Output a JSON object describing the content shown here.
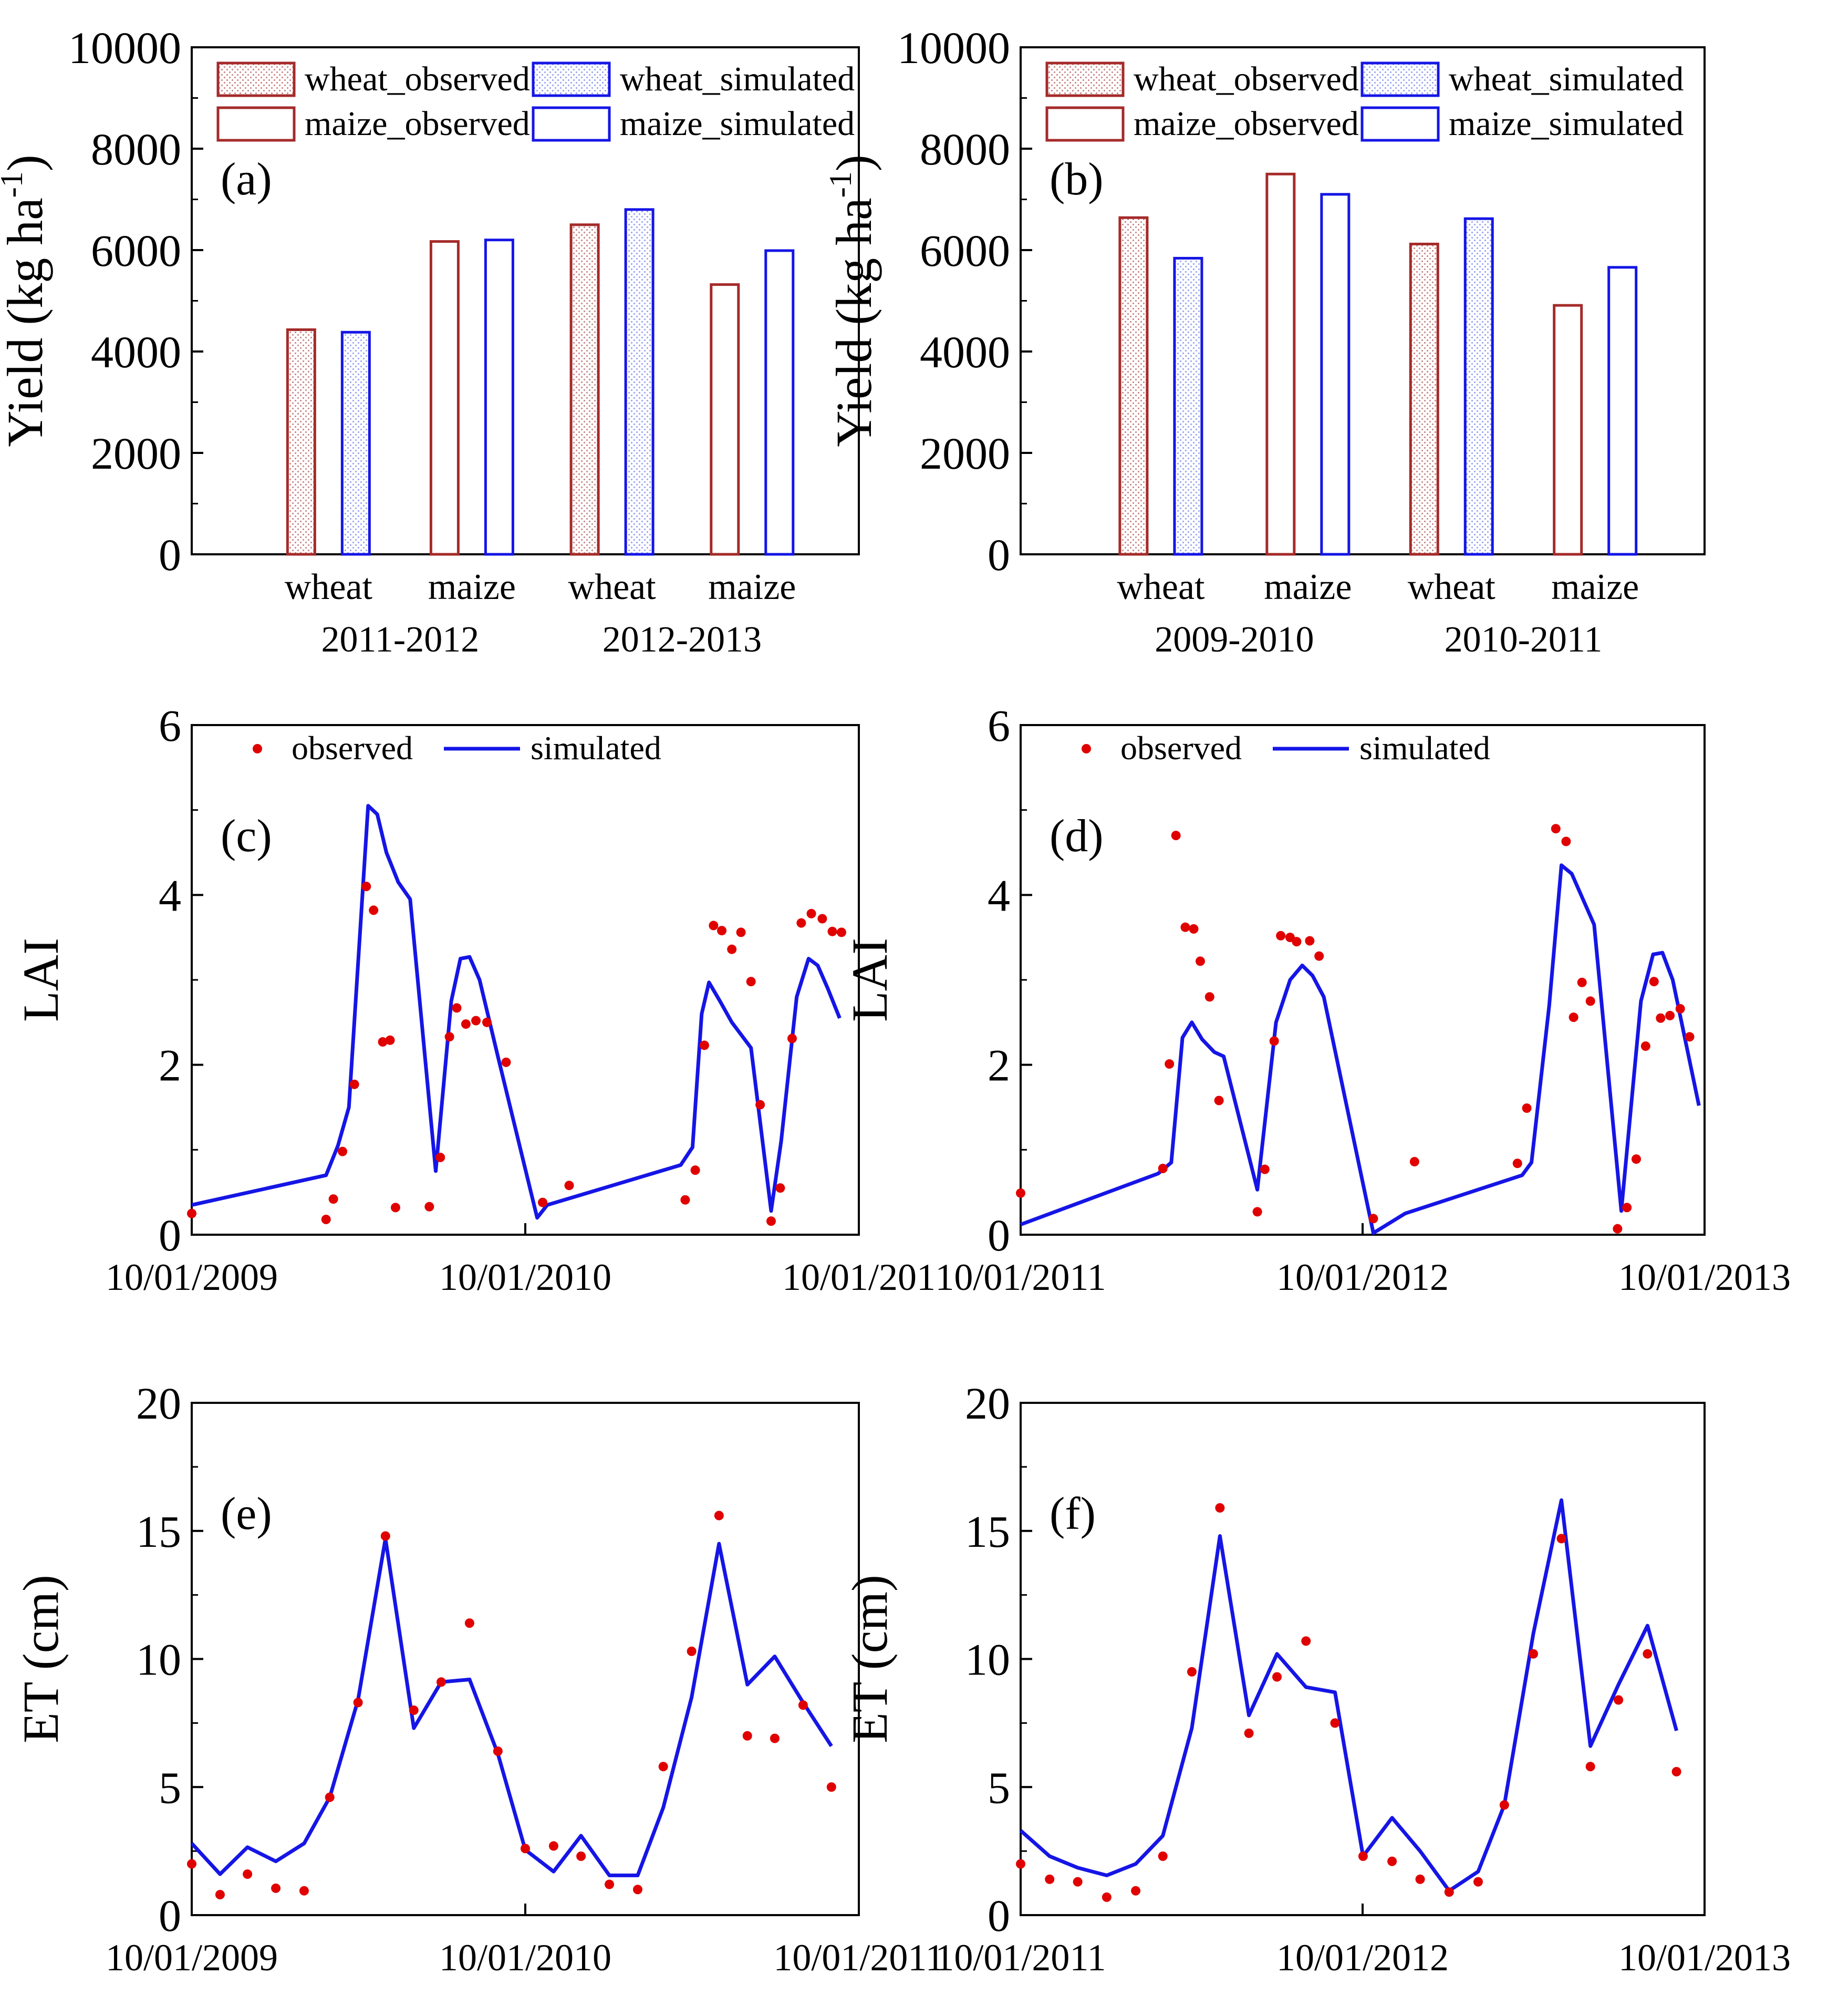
{
  "colors": {
    "observed": "#a52a2a",
    "simulated": "#1515e6",
    "point": "#e00000",
    "hatch_obs": "#c98a8a",
    "hatch_sim": "#9aa7ee"
  },
  "chart_data": [
    {
      "id": "a",
      "type": "bar",
      "panel_label": "(a)",
      "ylabel": "Yield (kg ha",
      "ylabel_sup": "-1",
      "ylabel_end": ")",
      "ylim": [
        0,
        10000
      ],
      "yticks": [
        "0",
        "2000",
        "4000",
        "6000",
        "8000",
        "10000"
      ],
      "categories": [
        "wheat",
        "maize",
        "wheat",
        "maize"
      ],
      "groups": [
        "2011-2012",
        "2012-2013"
      ],
      "series": [
        {
          "name": "wheat_observed",
          "values": [
            4430,
            null,
            6500,
            null
          ]
        },
        {
          "name": "maize_observed",
          "values": [
            null,
            6170,
            null,
            5320
          ]
        },
        {
          "name": "wheat_simulated",
          "values": [
            4380,
            null,
            6800,
            null
          ]
        },
        {
          "name": "maize_simulated",
          "values": [
            null,
            6200,
            null,
            5990
          ]
        }
      ],
      "legend": [
        "wheat_observed",
        "wheat_simulated",
        "maize_observed",
        "maize_simulated"
      ],
      "legend_position": "top"
    },
    {
      "id": "b",
      "type": "bar",
      "panel_label": "(b)",
      "ylabel": "Yield (kg ha",
      "ylabel_sup": "-1",
      "ylabel_end": ")",
      "ylim": [
        0,
        10000
      ],
      "yticks": [
        "0",
        "2000",
        "4000",
        "6000",
        "8000",
        "10000"
      ],
      "categories": [
        "wheat",
        "maize",
        "wheat",
        "maize"
      ],
      "groups": [
        "2009-2010",
        "2010-2011"
      ],
      "series": [
        {
          "name": "wheat_observed",
          "values": [
            6640,
            null,
            6120,
            null
          ]
        },
        {
          "name": "maize_observed",
          "values": [
            null,
            7500,
            null,
            4910
          ]
        },
        {
          "name": "wheat_simulated",
          "values": [
            5840,
            null,
            6620,
            null
          ]
        },
        {
          "name": "maize_simulated",
          "values": [
            null,
            7100,
            null,
            5660
          ]
        }
      ],
      "legend": [
        "wheat_observed",
        "wheat_simulated",
        "maize_observed",
        "maize_simulated"
      ],
      "legend_position": "top"
    },
    {
      "id": "c",
      "type": "line",
      "panel_label": "(c)",
      "ylabel": "LAI",
      "ylim": [
        0,
        6
      ],
      "yticks": [
        "0",
        "2",
        "4",
        "6"
      ],
      "xlim": [
        "2009-10-01",
        "2011-10-01"
      ],
      "xticks": [
        "10/01/2009",
        "10/01/2010",
        "10/01/201"
      ],
      "legend": {
        "observed": "observed",
        "simulated": "simulated"
      },
      "legend_position": "top",
      "simulated": [
        [
          "2009-10-01",
          0.35
        ],
        [
          "2010-02-25",
          0.7
        ],
        [
          "2010-03-10",
          1.05
        ],
        [
          "2010-03-22",
          1.5
        ],
        [
          "2010-04-12",
          5.05
        ],
        [
          "2010-04-22",
          4.95
        ],
        [
          "2010-05-02",
          4.5
        ],
        [
          "2010-05-15",
          4.15
        ],
        [
          "2010-05-28",
          3.95
        ],
        [
          "2010-06-25",
          0.75
        ],
        [
          "2010-07-12",
          2.75
        ],
        [
          "2010-07-22",
          3.25
        ],
        [
          "2010-08-01",
          3.27
        ],
        [
          "2010-08-12",
          3.0
        ],
        [
          "2010-09-01",
          2.1
        ],
        [
          "2010-10-14",
          0.2
        ],
        [
          "2010-10-25",
          0.35
        ],
        [
          "2011-03-20",
          0.82
        ],
        [
          "2011-04-02",
          1.03
        ],
        [
          "2011-04-12",
          2.6
        ],
        [
          "2011-04-20",
          2.97
        ],
        [
          "2011-05-02",
          2.75
        ],
        [
          "2011-05-15",
          2.5
        ],
        [
          "2011-06-05",
          2.2
        ],
        [
          "2011-06-27",
          0.28
        ],
        [
          "2011-07-08",
          1.1
        ],
        [
          "2011-07-25",
          2.8
        ],
        [
          "2011-08-07",
          3.25
        ],
        [
          "2011-08-17",
          3.17
        ],
        [
          "2011-08-28",
          2.9
        ],
        [
          "2011-09-10",
          2.55
        ]
      ],
      "observed": [
        [
          "2009-10-01",
          0.25
        ],
        [
          "2010-02-25",
          0.18
        ],
        [
          "2010-03-05",
          0.42
        ],
        [
          "2010-03-15",
          0.98
        ],
        [
          "2010-03-28",
          1.77
        ],
        [
          "2010-04-10",
          4.1
        ],
        [
          "2010-04-18",
          3.82
        ],
        [
          "2010-04-28",
          2.27
        ],
        [
          "2010-05-06",
          2.29
        ],
        [
          "2010-05-12",
          0.32
        ],
        [
          "2010-06-18",
          0.33
        ],
        [
          "2010-06-30",
          0.91
        ],
        [
          "2010-07-10",
          2.33
        ],
        [
          "2010-07-18",
          2.67
        ],
        [
          "2010-07-28",
          2.48
        ],
        [
          "2010-08-08",
          2.52
        ],
        [
          "2010-08-20",
          2.5
        ],
        [
          "2010-09-10",
          2.03
        ],
        [
          "2010-10-20",
          0.38
        ],
        [
          "2010-11-18",
          0.58
        ],
        [
          "2011-03-25",
          0.41
        ],
        [
          "2011-04-05",
          0.76
        ],
        [
          "2011-04-15",
          2.23
        ],
        [
          "2011-04-25",
          3.64
        ],
        [
          "2011-05-04",
          3.58
        ],
        [
          "2011-05-15",
          3.36
        ],
        [
          "2011-05-25",
          3.56
        ],
        [
          "2011-06-05",
          2.98
        ],
        [
          "2011-06-15",
          1.53
        ],
        [
          "2011-06-27",
          0.16
        ],
        [
          "2011-07-07",
          0.55
        ],
        [
          "2011-07-20",
          2.31
        ],
        [
          "2011-07-30",
          3.67
        ],
        [
          "2011-08-10",
          3.78
        ],
        [
          "2011-08-22",
          3.72
        ],
        [
          "2011-09-02",
          3.57
        ],
        [
          "2011-09-12",
          3.56
        ]
      ]
    },
    {
      "id": "d",
      "type": "line",
      "panel_label": "(d)",
      "ylabel": "LAI",
      "ylim": [
        0,
        6
      ],
      "yticks": [
        "0",
        "2",
        "4",
        "6"
      ],
      "xlim": [
        "2011-10-01",
        "2013-10-01"
      ],
      "xticks": [
        "10/01/2011",
        "10/01/2012",
        "10/01/2013"
      ],
      "legend": {
        "observed": "observed",
        "simulated": "simulated"
      },
      "legend_position": "top",
      "simulated": [
        [
          "2011-10-01",
          0.12
        ],
        [
          "2012-02-25",
          0.72
        ],
        [
          "2012-03-10",
          0.85
        ],
        [
          "2012-03-22",
          2.32
        ],
        [
          "2012-04-01",
          2.5
        ],
        [
          "2012-04-12",
          2.3
        ],
        [
          "2012-04-25",
          2.15
        ],
        [
          "2012-05-05",
          2.1
        ],
        [
          "2012-06-10",
          0.53
        ],
        [
          "2012-06-30",
          2.5
        ],
        [
          "2012-07-15",
          3.0
        ],
        [
          "2012-07-28",
          3.17
        ],
        [
          "2012-08-08",
          3.05
        ],
        [
          "2012-08-20",
          2.8
        ],
        [
          "2012-10-12",
          0.02
        ],
        [
          "2012-11-15",
          0.25
        ],
        [
          "2013-03-20",
          0.7
        ],
        [
          "2013-03-30",
          0.85
        ],
        [
          "2013-04-18",
          2.7
        ],
        [
          "2013-05-01",
          4.35
        ],
        [
          "2013-05-12",
          4.25
        ],
        [
          "2013-06-05",
          3.65
        ],
        [
          "2013-07-04",
          0.28
        ],
        [
          "2013-07-25",
          2.75
        ],
        [
          "2013-08-07",
          3.3
        ],
        [
          "2013-08-17",
          3.32
        ],
        [
          "2013-08-28",
          3.0
        ],
        [
          "2013-09-25",
          1.52
        ]
      ],
      "observed": [
        [
          "2011-10-01",
          0.49
        ],
        [
          "2012-03-01",
          0.78
        ],
        [
          "2012-03-08",
          2.01
        ],
        [
          "2012-03-15",
          4.7
        ],
        [
          "2012-03-25",
          3.62
        ],
        [
          "2012-04-03",
          3.6
        ],
        [
          "2012-04-10",
          3.22
        ],
        [
          "2012-04-20",
          2.8
        ],
        [
          "2012-04-30",
          1.58
        ],
        [
          "2012-06-10",
          0.27
        ],
        [
          "2012-06-18",
          0.77
        ],
        [
          "2012-06-28",
          2.28
        ],
        [
          "2012-07-05",
          3.52
        ],
        [
          "2012-07-15",
          3.5
        ],
        [
          "2012-07-22",
          3.45
        ],
        [
          "2012-08-05",
          3.46
        ],
        [
          "2012-08-15",
          3.28
        ],
        [
          "2012-10-12",
          0.19
        ],
        [
          "2012-11-25",
          0.86
        ],
        [
          "2013-03-15",
          0.84
        ],
        [
          "2013-03-25",
          1.49
        ],
        [
          "2013-04-25",
          4.78
        ],
        [
          "2013-05-06",
          4.63
        ],
        [
          "2013-05-14",
          2.56
        ],
        [
          "2013-05-23",
          2.97
        ],
        [
          "2013-06-01",
          2.75
        ],
        [
          "2013-06-30",
          0.07
        ],
        [
          "2013-07-10",
          0.32
        ],
        [
          "2013-07-20",
          0.89
        ],
        [
          "2013-07-30",
          2.22
        ],
        [
          "2013-08-08",
          2.98
        ],
        [
          "2013-08-15",
          2.55
        ],
        [
          "2013-08-25",
          2.58
        ],
        [
          "2013-09-05",
          2.66
        ],
        [
          "2013-09-15",
          2.33
        ]
      ]
    },
    {
      "id": "e",
      "type": "line",
      "panel_label": "(e)",
      "ylabel": "ET (cm)",
      "ylim": [
        0,
        20
      ],
      "yticks": [
        "0",
        "5",
        "10",
        "15",
        "20"
      ],
      "xlim": [
        "2009-10-01",
        "2011-10-01"
      ],
      "xticks": [
        "10/01/2009",
        "10/01/2010",
        "10/01/2011"
      ],
      "simulated": [
        [
          "2009-10-01",
          2.8
        ],
        [
          "2009-11-01",
          1.6
        ],
        [
          "2009-12-01",
          2.65
        ],
        [
          "2010-01-01",
          2.1
        ],
        [
          "2010-02-01",
          2.8
        ],
        [
          "2010-03-01",
          4.6
        ],
        [
          "2010-04-01",
          8.4
        ],
        [
          "2010-05-01",
          14.7
        ],
        [
          "2010-06-01",
          7.3
        ],
        [
          "2010-07-01",
          9.1
        ],
        [
          "2010-08-01",
          9.2
        ],
        [
          "2010-09-01",
          6.3
        ],
        [
          "2010-10-01",
          2.55
        ],
        [
          "2010-11-01",
          1.7
        ],
        [
          "2010-12-01",
          3.1
        ],
        [
          "2011-01-01",
          1.55
        ],
        [
          "2011-02-01",
          1.55
        ],
        [
          "2011-03-01",
          4.2
        ],
        [
          "2011-04-01",
          8.5
        ],
        [
          "2011-05-01",
          14.5
        ],
        [
          "2011-06-01",
          9.0
        ],
        [
          "2011-07-01",
          10.1
        ],
        [
          "2011-08-01",
          8.3
        ],
        [
          "2011-09-01",
          6.6
        ]
      ],
      "observed": [
        [
          "2009-10-01",
          2.0
        ],
        [
          "2009-11-01",
          0.8
        ],
        [
          "2009-12-01",
          1.6
        ],
        [
          "2010-01-01",
          1.05
        ],
        [
          "2010-02-01",
          0.95
        ],
        [
          "2010-03-01",
          4.6
        ],
        [
          "2010-04-01",
          8.3
        ],
        [
          "2010-05-01",
          14.8
        ],
        [
          "2010-06-01",
          8.0
        ],
        [
          "2010-07-01",
          9.1
        ],
        [
          "2010-08-01",
          11.4
        ],
        [
          "2010-09-01",
          6.4
        ],
        [
          "2010-10-01",
          2.6
        ],
        [
          "2010-11-01",
          2.7
        ],
        [
          "2010-12-01",
          2.3
        ],
        [
          "2011-01-01",
          1.2
        ],
        [
          "2011-02-01",
          1.0
        ],
        [
          "2011-03-01",
          5.8
        ],
        [
          "2011-04-01",
          10.3
        ],
        [
          "2011-05-01",
          15.6
        ],
        [
          "2011-06-01",
          7.0
        ],
        [
          "2011-07-01",
          6.9
        ],
        [
          "2011-08-01",
          8.2
        ],
        [
          "2011-09-01",
          5.0
        ]
      ]
    },
    {
      "id": "f",
      "type": "line",
      "panel_label": "(f)",
      "ylabel": "ET (cm)",
      "ylim": [
        0,
        20
      ],
      "yticks": [
        "0",
        "5",
        "10",
        "15",
        "20"
      ],
      "xlim": [
        "2011-10-01",
        "2013-10-01"
      ],
      "xticks": [
        "10/01/2011",
        "10/01/2012",
        "10/01/2013"
      ],
      "simulated": [
        [
          "2011-10-01",
          3.3
        ],
        [
          "2011-11-01",
          2.3
        ],
        [
          "2011-12-01",
          1.85
        ],
        [
          "2012-01-01",
          1.55
        ],
        [
          "2012-02-01",
          2.0
        ],
        [
          "2012-03-01",
          3.1
        ],
        [
          "2012-04-01",
          7.3
        ],
        [
          "2012-05-01",
          14.8
        ],
        [
          "2012-06-01",
          7.8
        ],
        [
          "2012-07-01",
          10.2
        ],
        [
          "2012-08-01",
          8.9
        ],
        [
          "2012-09-01",
          8.7
        ],
        [
          "2012-10-01",
          2.3
        ],
        [
          "2012-11-01",
          3.8
        ],
        [
          "2012-12-01",
          2.5
        ],
        [
          "2013-01-01",
          0.95
        ],
        [
          "2013-02-01",
          1.7
        ],
        [
          "2013-03-01",
          4.3
        ],
        [
          "2013-04-01",
          11.0
        ],
        [
          "2013-05-01",
          16.2
        ],
        [
          "2013-06-01",
          6.6
        ],
        [
          "2013-07-01",
          9.0
        ],
        [
          "2013-08-01",
          11.3
        ],
        [
          "2013-09-01",
          7.2
        ]
      ],
      "observed": [
        [
          "2011-10-01",
          2.0
        ],
        [
          "2011-11-01",
          1.4
        ],
        [
          "2011-12-01",
          1.3
        ],
        [
          "2012-01-01",
          0.7
        ],
        [
          "2012-02-01",
          0.95
        ],
        [
          "2012-03-01",
          2.3
        ],
        [
          "2012-04-01",
          9.5
        ],
        [
          "2012-05-01",
          15.9
        ],
        [
          "2012-06-01",
          7.1
        ],
        [
          "2012-07-01",
          9.3
        ],
        [
          "2012-08-01",
          10.7
        ],
        [
          "2012-09-01",
          7.5
        ],
        [
          "2012-10-01",
          2.3
        ],
        [
          "2012-11-01",
          2.1
        ],
        [
          "2012-12-01",
          1.4
        ],
        [
          "2013-01-01",
          0.9
        ],
        [
          "2013-02-01",
          1.3
        ],
        [
          "2013-03-01",
          4.3
        ],
        [
          "2013-04-01",
          10.2
        ],
        [
          "2013-05-01",
          14.7
        ],
        [
          "2013-06-01",
          5.8
        ],
        [
          "2013-07-01",
          8.4
        ],
        [
          "2013-08-01",
          10.2
        ],
        [
          "2013-09-01",
          5.6
        ]
      ]
    }
  ]
}
